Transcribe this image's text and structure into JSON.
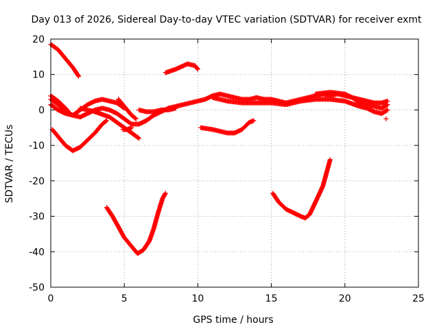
{
  "chart_data": {
    "type": "scatter",
    "title": "Day 013 of 2026, Sidereal Day-to-day VTEC variation (SDTVAR) for receiver exmt",
    "xlabel": "GPS time / hours",
    "ylabel": "SDTVAR / TECUs",
    "xlim": [
      0,
      25
    ],
    "ylim": [
      -50,
      20
    ],
    "xticks": [
      0,
      5,
      10,
      15,
      20,
      25
    ],
    "yticks": [
      -50,
      -40,
      -30,
      -20,
      -10,
      0,
      10,
      20
    ],
    "xtick_labels": [
      "0",
      "5",
      "10",
      "15",
      "20",
      "25"
    ],
    "ytick_labels": [
      "-50",
      "-40",
      "-30",
      "-20",
      "-10",
      "0",
      "10",
      "20"
    ],
    "grid": true,
    "marker": "+",
    "color": "#ff0000",
    "series": [
      {
        "name": "arc-1",
        "points": [
          [
            0.0,
            18.5
          ],
          [
            0.5,
            17.0
          ],
          [
            1.0,
            14.5
          ],
          [
            1.5,
            12.0
          ],
          [
            1.9,
            9.5
          ]
        ]
      },
      {
        "name": "arc-2",
        "points": [
          [
            7.8,
            10.5
          ],
          [
            8.5,
            11.5
          ],
          [
            9.3,
            13.0
          ],
          [
            9.8,
            12.5
          ],
          [
            10.0,
            11.5
          ]
        ]
      },
      {
        "name": "arc-3",
        "points": [
          [
            0.0,
            4.0
          ],
          [
            0.5,
            2.5
          ],
          [
            1.0,
            0.5
          ],
          [
            1.3,
            -1.0
          ]
        ]
      },
      {
        "name": "arc-4",
        "points": [
          [
            0.0,
            1.5
          ],
          [
            0.5,
            0.0
          ],
          [
            1.0,
            -1.0
          ],
          [
            1.5,
            -1.5
          ],
          [
            2.0,
            0.0
          ],
          [
            2.5,
            1.5
          ],
          [
            3.0,
            2.5
          ],
          [
            3.5,
            3.0
          ],
          [
            4.0,
            2.5
          ],
          [
            4.5,
            2.0
          ],
          [
            5.0,
            0.5
          ]
        ]
      },
      {
        "name": "arc-5",
        "points": [
          [
            0.0,
            3.0
          ],
          [
            0.5,
            1.5
          ],
          [
            1.0,
            -0.5
          ],
          [
            1.5,
            -1.5
          ],
          [
            2.0,
            -2.0
          ],
          [
            2.5,
            -1.0
          ],
          [
            3.0,
            0.0
          ],
          [
            3.5,
            0.5
          ],
          [
            4.0,
            0.0
          ],
          [
            4.5,
            -1.0
          ],
          [
            5.0,
            -2.5
          ],
          [
            5.5,
            -4.0
          ],
          [
            6.0,
            -4.0
          ],
          [
            6.5,
            -3.0
          ],
          [
            7.0,
            -1.5
          ],
          [
            7.5,
            -0.5
          ],
          [
            8.0,
            0.5
          ]
        ]
      },
      {
        "name": "arc-6",
        "points": [
          [
            2.0,
            0.5
          ],
          [
            3.0,
            -0.5
          ],
          [
            4.0,
            -2.0
          ],
          [
            4.5,
            -3.5
          ],
          [
            5.0,
            -5.0
          ],
          [
            5.5,
            -6.5
          ],
          [
            6.0,
            -8.0
          ]
        ]
      },
      {
        "name": "arc-7",
        "points": [
          [
            4.6,
            3.0
          ],
          [
            5.0,
            1.0
          ],
          [
            5.5,
            -1.5
          ],
          [
            5.8,
            -2.5
          ]
        ]
      },
      {
        "name": "arc-8",
        "points": [
          [
            6.0,
            0.0
          ],
          [
            6.5,
            -0.5
          ],
          [
            7.0,
            -0.5
          ],
          [
            7.5,
            0.0
          ],
          [
            8.0,
            0.0
          ],
          [
            8.5,
            0.5
          ]
        ]
      },
      {
        "name": "arc-9",
        "points": [
          [
            4.9,
            -5.5
          ],
          [
            5.2,
            -5.5
          ],
          [
            5.5,
            -5.0
          ]
        ]
      },
      {
        "name": "arc-10",
        "points": [
          [
            0.1,
            -5.5
          ],
          [
            0.5,
            -7.5
          ],
          [
            1.0,
            -10.0
          ],
          [
            1.5,
            -11.5
          ],
          [
            2.0,
            -10.5
          ],
          [
            2.5,
            -8.5
          ],
          [
            3.0,
            -6.5
          ],
          [
            3.5,
            -4.0
          ],
          [
            3.8,
            -3.0
          ]
        ]
      },
      {
        "name": "arc-11",
        "points": [
          [
            8.0,
            0.5
          ],
          [
            8.5,
            1.0
          ],
          [
            9.0,
            1.5
          ],
          [
            9.5,
            2.0
          ],
          [
            10.0,
            2.5
          ],
          [
            10.5,
            3.0
          ],
          [
            11.0,
            4.0
          ],
          [
            11.5,
            4.5
          ],
          [
            12.0,
            4.0
          ],
          [
            12.5,
            3.5
          ],
          [
            13.0,
            3.0
          ],
          [
            13.5,
            3.0
          ],
          [
            14.0,
            3.5
          ],
          [
            14.5,
            3.0
          ],
          [
            15.0,
            3.0
          ],
          [
            15.5,
            2.5
          ],
          [
            16.0,
            2.0
          ],
          [
            16.5,
            2.5
          ],
          [
            17.0,
            3.0
          ],
          [
            17.5,
            3.5
          ],
          [
            18.0,
            4.0
          ],
          [
            18.5,
            4.5
          ],
          [
            19.0,
            4.0
          ],
          [
            19.5,
            4.5
          ],
          [
            20.0,
            4.0
          ],
          [
            20.5,
            3.5
          ],
          [
            21.0,
            3.0
          ],
          [
            21.5,
            2.5
          ],
          [
            22.0,
            2.0
          ],
          [
            22.5,
            2.0
          ],
          [
            22.9,
            2.5
          ]
        ]
      },
      {
        "name": "arc-12",
        "points": [
          [
            11.0,
            3.5
          ],
          [
            12.0,
            2.5
          ],
          [
            13.0,
            2.0
          ],
          [
            14.0,
            2.0
          ],
          [
            15.0,
            2.0
          ],
          [
            16.0,
            1.5
          ],
          [
            17.0,
            2.5
          ],
          [
            18.0,
            3.0
          ],
          [
            19.0,
            3.0
          ],
          [
            20.0,
            2.5
          ],
          [
            21.0,
            1.0
          ],
          [
            21.5,
            0.5
          ],
          [
            22.0,
            -0.5
          ],
          [
            22.5,
            -1.0
          ],
          [
            22.9,
            0.0
          ]
        ]
      },
      {
        "name": "arc-13",
        "points": [
          [
            18.0,
            4.5
          ],
          [
            19.0,
            5.0
          ],
          [
            20.0,
            4.5
          ],
          [
            20.5,
            3.5
          ],
          [
            21.0,
            2.0
          ],
          [
            21.5,
            1.5
          ],
          [
            22.0,
            1.0
          ],
          [
            22.5,
            0.5
          ],
          [
            22.9,
            1.5
          ]
        ]
      },
      {
        "name": "arc-14",
        "points": [
          [
            22.8,
            -2.5
          ]
        ]
      },
      {
        "name": "arc-15",
        "points": [
          [
            10.2,
            -5.0
          ],
          [
            11.0,
            -5.5
          ],
          [
            11.5,
            -6.0
          ],
          [
            12.0,
            -6.5
          ],
          [
            12.5,
            -6.5
          ],
          [
            13.0,
            -5.5
          ],
          [
            13.5,
            -3.5
          ],
          [
            13.8,
            -3.0
          ]
        ]
      },
      {
        "name": "arc-16",
        "points": [
          [
            3.8,
            -27.5
          ],
          [
            4.2,
            -30.0
          ],
          [
            4.6,
            -33.0
          ],
          [
            5.0,
            -36.0
          ],
          [
            5.5,
            -38.5
          ],
          [
            5.9,
            -40.5
          ],
          [
            6.3,
            -39.5
          ],
          [
            6.7,
            -37.0
          ],
          [
            7.0,
            -33.5
          ],
          [
            7.3,
            -29.0
          ],
          [
            7.6,
            -25.0
          ],
          [
            7.8,
            -23.5
          ]
        ]
      },
      {
        "name": "arc-17",
        "points": [
          [
            15.1,
            -23.5
          ],
          [
            15.5,
            -26.0
          ],
          [
            16.0,
            -28.0
          ],
          [
            16.5,
            -29.0
          ],
          [
            17.0,
            -30.0
          ],
          [
            17.3,
            -30.5
          ],
          [
            17.6,
            -29.5
          ],
          [
            18.0,
            -26.0
          ],
          [
            18.5,
            -21.5
          ],
          [
            18.8,
            -17.0
          ],
          [
            19.0,
            -14.0
          ]
        ]
      }
    ]
  }
}
